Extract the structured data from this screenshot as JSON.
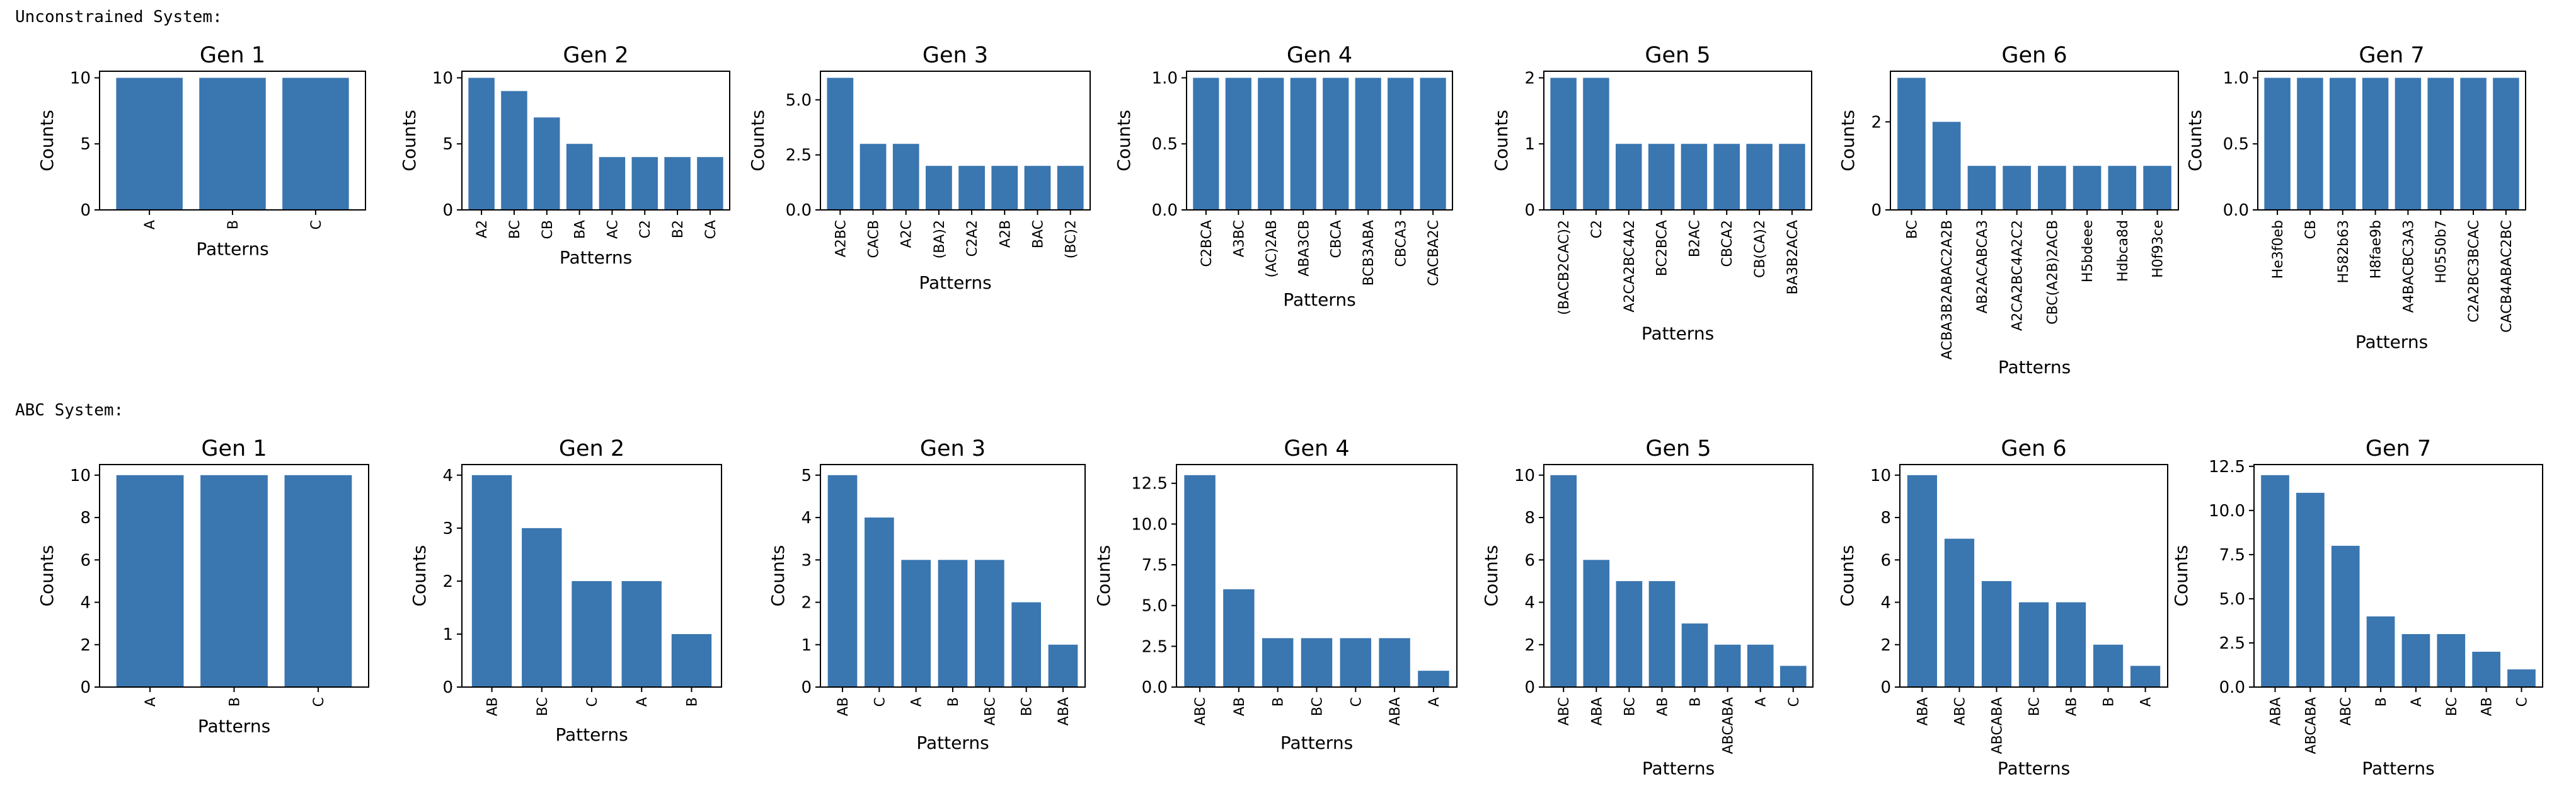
{
  "sections": [
    {
      "label": "Unconstrained System:"
    },
    {
      "label": "ABC System:"
    }
  ],
  "bar_color": "#3a76b0",
  "chart_data": [
    {
      "type": "bar",
      "title": "Gen 1",
      "xlabel": "Patterns",
      "ylabel": "Counts",
      "categories": [
        "A",
        "B",
        "C"
      ],
      "values": [
        10,
        10,
        10
      ],
      "ylim": [
        0,
        10.5
      ],
      "yticks": [
        0,
        5,
        10
      ],
      "ytick_labels": [
        "0",
        "5",
        "10"
      ]
    },
    {
      "type": "bar",
      "title": "Gen 2",
      "xlabel": "Patterns",
      "ylabel": "Counts",
      "categories": [
        "A2",
        "BC",
        "CB",
        "BA",
        "AC",
        "C2",
        "B2",
        "CA"
      ],
      "values": [
        10,
        9,
        7,
        5,
        4,
        4,
        4,
        4
      ],
      "ylim": [
        0,
        10.5
      ],
      "yticks": [
        0,
        5,
        10
      ],
      "ytick_labels": [
        "0",
        "5",
        "10"
      ]
    },
    {
      "type": "bar",
      "title": "Gen 3",
      "xlabel": "Patterns",
      "ylabel": "Counts",
      "categories": [
        "A2BC",
        "CACB",
        "A2C",
        "(BA)2",
        "C2A2",
        "A2B",
        "BAC",
        "(BC)2"
      ],
      "values": [
        6,
        3,
        3,
        2,
        2,
        2,
        2,
        2
      ],
      "ylim": [
        0,
        6.3
      ],
      "yticks": [
        0,
        2.5,
        5
      ],
      "ytick_labels": [
        "0.0",
        "2.5",
        "5.0"
      ]
    },
    {
      "type": "bar",
      "title": "Gen 4",
      "xlabel": "Patterns",
      "ylabel": "Counts",
      "categories": [
        "C2BCA",
        "A3BC",
        "(AC)2AB",
        "ABA3CB",
        "CBCA",
        "BCB3ABA",
        "CBCA3",
        "CACBA2C"
      ],
      "values": [
        1,
        1,
        1,
        1,
        1,
        1,
        1,
        1
      ],
      "ylim": [
        0,
        1.05
      ],
      "yticks": [
        0,
        0.5,
        1
      ],
      "ytick_labels": [
        "0.0",
        "0.5",
        "1.0"
      ]
    },
    {
      "type": "bar",
      "title": "Gen 5",
      "xlabel": "Patterns",
      "ylabel": "Counts",
      "categories": [
        "(BACB2CAC)2",
        "C2",
        "A2CA2BC4A2",
        "BC2BCA",
        "B2AC",
        "CBCA2",
        "CB(CA)2",
        "BA3B2ACA"
      ],
      "values": [
        2,
        2,
        1,
        1,
        1,
        1,
        1,
        1
      ],
      "ylim": [
        0,
        2.1
      ],
      "yticks": [
        0,
        1,
        2
      ],
      "ytick_labels": [
        "0",
        "1",
        "2"
      ]
    },
    {
      "type": "bar",
      "title": "Gen 6",
      "xlabel": "Patterns",
      "ylabel": "Counts",
      "categories": [
        "BC",
        "ACBA3B2ABAC2A2B",
        "AB2ACABCA3",
        "A2CA2BC4A2C2",
        "CBC(A2B)2ACB",
        "H5bdeee",
        "Hdbca8d",
        "H0f93ce"
      ],
      "values": [
        3,
        2,
        1,
        1,
        1,
        1,
        1,
        1
      ],
      "ylim": [
        0,
        3.15
      ],
      "yticks": [
        0,
        2
      ],
      "ytick_labels": [
        "0",
        "2"
      ]
    },
    {
      "type": "bar",
      "title": "Gen 7",
      "xlabel": "Patterns",
      "ylabel": "Counts",
      "categories": [
        "He3f0eb",
        "CB",
        "H582b63",
        "H8fae9b",
        "A4BACBC3A3",
        "H0550b7",
        "C2A2BC3BCAC",
        "CACB4ABAC2BC"
      ],
      "values": [
        1,
        1,
        1,
        1,
        1,
        1,
        1,
        1
      ],
      "ylim": [
        0,
        1.05
      ],
      "yticks": [
        0,
        0.5,
        1
      ],
      "ytick_labels": [
        "0.0",
        "0.5",
        "1.0"
      ]
    },
    {
      "type": "bar",
      "title": "Gen 1",
      "xlabel": "Patterns",
      "ylabel": "Counts",
      "categories": [
        "A",
        "B",
        "C"
      ],
      "values": [
        10,
        10,
        10
      ],
      "ylim": [
        0,
        10.5
      ],
      "yticks": [
        0,
        2,
        4,
        6,
        8,
        10
      ],
      "ytick_labels": [
        "0",
        "2",
        "4",
        "6",
        "8",
        "10"
      ]
    },
    {
      "type": "bar",
      "title": "Gen 2",
      "xlabel": "Patterns",
      "ylabel": "Counts",
      "categories": [
        "AB",
        "BC",
        "C",
        "A",
        "B"
      ],
      "values": [
        4,
        3,
        2,
        2,
        1
      ],
      "ylim": [
        0,
        4.2
      ],
      "yticks": [
        0,
        1,
        2,
        3,
        4
      ],
      "ytick_labels": [
        "0",
        "1",
        "2",
        "3",
        "4"
      ]
    },
    {
      "type": "bar",
      "title": "Gen 3",
      "xlabel": "Patterns",
      "ylabel": "Counts",
      "categories": [
        "AB",
        "C",
        "A",
        "B",
        "ABC",
        "BC",
        "ABA"
      ],
      "values": [
        5,
        4,
        3,
        3,
        3,
        2,
        1
      ],
      "ylim": [
        0,
        5.25
      ],
      "yticks": [
        0,
        1,
        2,
        3,
        4,
        5
      ],
      "ytick_labels": [
        "0",
        "1",
        "2",
        "3",
        "4",
        "5"
      ]
    },
    {
      "type": "bar",
      "title": "Gen 4",
      "xlabel": "Patterns",
      "ylabel": "Counts",
      "categories": [
        "ABC",
        "AB",
        "B",
        "BC",
        "C",
        "ABA",
        "A"
      ],
      "values": [
        13,
        6,
        3,
        3,
        3,
        3,
        1
      ],
      "ylim": [
        0,
        13.65
      ],
      "yticks": [
        0,
        2.5,
        5,
        7.5,
        10,
        12.5
      ],
      "ytick_labels": [
        "0.0",
        "2.5",
        "5.0",
        "7.5",
        "10.0",
        "12.5"
      ]
    },
    {
      "type": "bar",
      "title": "Gen 5",
      "xlabel": "Patterns",
      "ylabel": "Counts",
      "categories": [
        "ABC",
        "ABA",
        "BC",
        "AB",
        "B",
        "ABCABA",
        "A",
        "C"
      ],
      "values": [
        10,
        6,
        5,
        5,
        3,
        2,
        2,
        1
      ],
      "ylim": [
        0,
        10.5
      ],
      "yticks": [
        0,
        2,
        4,
        6,
        8,
        10
      ],
      "ytick_labels": [
        "0",
        "2",
        "4",
        "6",
        "8",
        "10"
      ]
    },
    {
      "type": "bar",
      "title": "Gen 6",
      "xlabel": "Patterns",
      "ylabel": "Counts",
      "categories": [
        "ABA",
        "ABC",
        "ABCABA",
        "BC",
        "AB",
        "B",
        "A"
      ],
      "values": [
        10,
        7,
        5,
        4,
        4,
        2,
        1
      ],
      "ylim": [
        0,
        10.5
      ],
      "yticks": [
        0,
        2,
        4,
        6,
        8,
        10
      ],
      "ytick_labels": [
        "0",
        "2",
        "4",
        "6",
        "8",
        "10"
      ]
    },
    {
      "type": "bar",
      "title": "Gen 7",
      "xlabel": "Patterns",
      "ylabel": "Counts",
      "categories": [
        "ABA",
        "ABCABA",
        "ABC",
        "B",
        "A",
        "BC",
        "AB",
        "C"
      ],
      "values": [
        12,
        11,
        8,
        4,
        3,
        3,
        2,
        1
      ],
      "ylim": [
        0,
        12.6
      ],
      "yticks": [
        0,
        2.5,
        5,
        7.5,
        10,
        12.5
      ],
      "ytick_labels": [
        "0.0",
        "2.5",
        "5.0",
        "7.5",
        "10.0",
        "12.5"
      ]
    }
  ]
}
